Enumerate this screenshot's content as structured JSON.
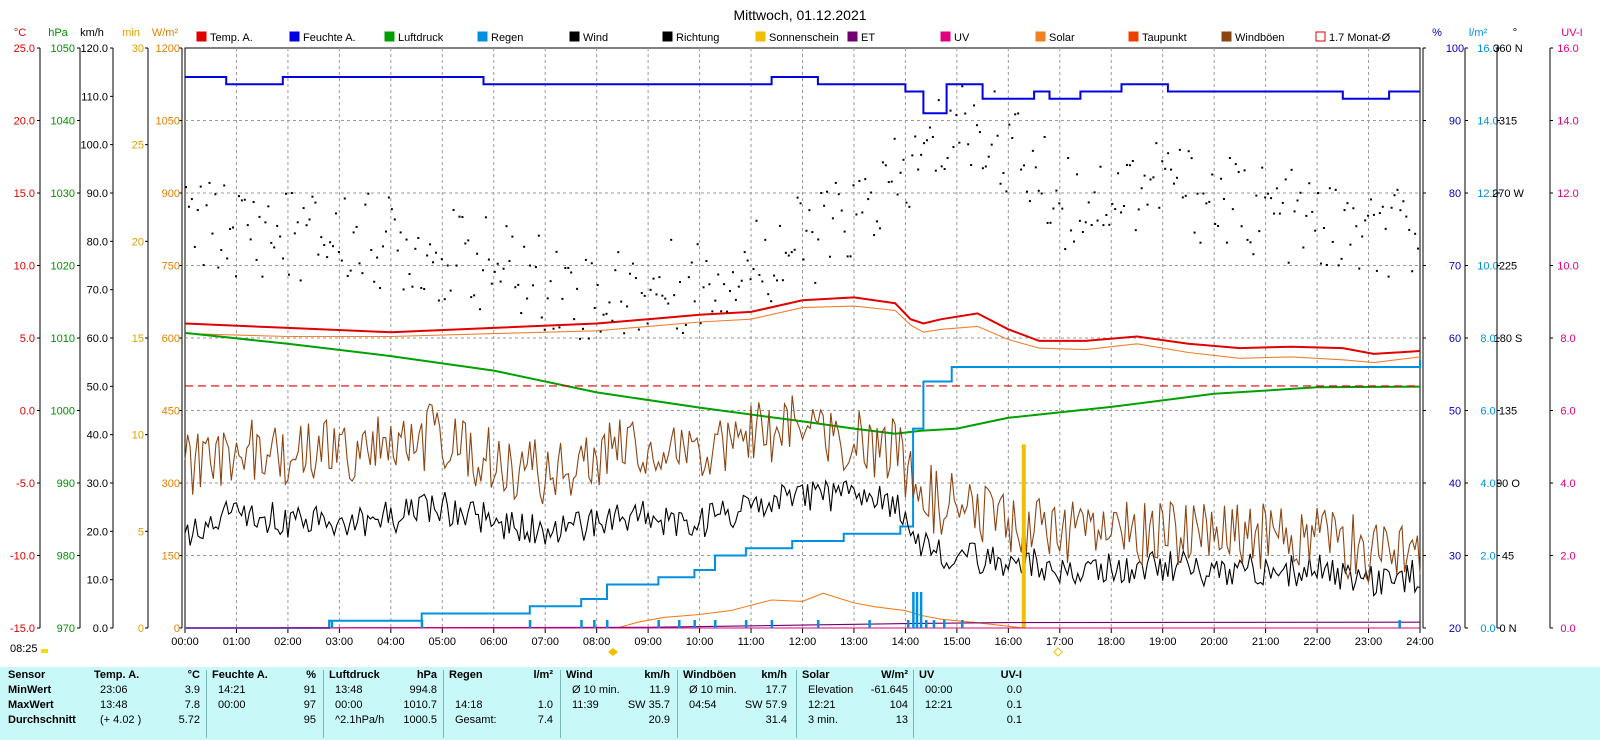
{
  "title": "Mittwoch, 01.12.2021",
  "sunrise_label": "08:25",
  "legend": [
    {
      "label": "Temp. A.",
      "color": "#e00000",
      "marker": "fill"
    },
    {
      "label": "Feuchte A.",
      "color": "#0000e0",
      "marker": "fill"
    },
    {
      "label": "Luftdruck",
      "color": "#00a000",
      "marker": "fill"
    },
    {
      "label": "Regen",
      "color": "#0090e0",
      "marker": "fill"
    },
    {
      "label": "Wind",
      "color": "#000000",
      "marker": "fill"
    },
    {
      "label": "Richtung",
      "color": "#000000",
      "marker": "fill"
    },
    {
      "label": "Sonnenschein",
      "color": "#f0c000",
      "marker": "fill"
    },
    {
      "label": "ET",
      "color": "#700070",
      "marker": "fill"
    },
    {
      "label": "UV",
      "color": "#e00080",
      "marker": "fill"
    },
    {
      "label": "Solar",
      "color": "#f08020",
      "marker": "fill"
    },
    {
      "label": "Taupunkt",
      "color": "#f04000",
      "marker": "fill"
    },
    {
      "label": "Windböen",
      "color": "#8b4513",
      "marker": "fill"
    },
    {
      "label": "1.7 Monat-Ø",
      "color": "#e00000",
      "marker": "outline"
    }
  ],
  "axes_left": [
    {
      "unit": "°C",
      "color": "#e00000",
      "ticks": [
        "25.0",
        "20.0",
        "15.0",
        "10.0",
        "5.0",
        "0.0",
        "-5.0",
        "-10.0",
        "-15.0"
      ]
    },
    {
      "unit": "hPa",
      "color": "#009000",
      "ticks": [
        "1050",
        "1040",
        "1030",
        "1020",
        "1010",
        "1000",
        "990",
        "980",
        "970"
      ]
    },
    {
      "unit": "km/h",
      "color": "#000000",
      "ticks": [
        "120.0",
        "110.0",
        "100.0",
        "90.0",
        "80.0",
        "70.0",
        "60.0",
        "50.0",
        "40.0",
        "30.0",
        "20.0",
        "10.0",
        "0.0"
      ]
    },
    {
      "unit": "min",
      "color": "#e0a000",
      "ticks": [
        "30",
        "25",
        "20",
        "15",
        "10",
        "5",
        "0"
      ]
    },
    {
      "unit": "W/m²",
      "color": "#e08000",
      "ticks": [
        "1200",
        "1050",
        "900",
        "750",
        "600",
        "450",
        "300",
        "150",
        "0"
      ]
    }
  ],
  "axes_right": [
    {
      "unit": "%",
      "color": "#0000c0",
      "ticks": [
        "100",
        "90",
        "80",
        "70",
        "60",
        "50",
        "40",
        "30",
        "20"
      ]
    },
    {
      "unit": "l/m²",
      "color": "#0090e0",
      "ticks": [
        "16.0",
        "14.0",
        "12.0",
        "10.0",
        "8.0",
        "6.0",
        "4.0",
        "2.0",
        "0.0"
      ]
    },
    {
      "unit": "°",
      "color": "#000000",
      "ticks": [
        "360 N",
        "315",
        "270 W",
        "225",
        "180 S",
        "135",
        "90 O",
        "45",
        "0 N"
      ]
    },
    {
      "unit": "UV-I",
      "color": "#e00080",
      "ticks": [
        "16.0",
        "14.0",
        "12.0",
        "10.0",
        "8.0",
        "6.0",
        "4.0",
        "2.0",
        "0.0"
      ]
    }
  ],
  "chart_data": {
    "type": "line",
    "title": "Mittwoch, 01.12.2021",
    "x_tick_labels": [
      "00:00",
      "01:00",
      "02:00",
      "03:00",
      "04:00",
      "05:00",
      "06:00",
      "07:00",
      "08:00",
      "09:00",
      "10:00",
      "11:00",
      "12:00",
      "13:00",
      "14:00",
      "15:00",
      "16:00",
      "17:00",
      "18:00",
      "19:00",
      "20:00",
      "21:00",
      "22:00",
      "23:00",
      "24:00"
    ],
    "x_range_hours": [
      0,
      24
    ],
    "grid": true,
    "legend_position": "top",
    "series": [
      {
        "name": "Temp. A.",
        "axis": "°C",
        "ylim": [
          -15,
          25
        ],
        "color": "#e00000",
        "x": [
          0,
          2,
          4,
          6,
          8,
          9,
          10,
          11,
          12,
          13,
          13.8,
          14.1,
          14.35,
          14.7,
          15.4,
          16,
          16.6,
          17.5,
          18.5,
          19.5,
          20.5,
          21.5,
          22.5,
          23.1,
          24
        ],
        "y": [
          6.0,
          5.7,
          5.4,
          5.7,
          6.0,
          6.3,
          6.6,
          6.8,
          7.6,
          7.8,
          7.4,
          6.3,
          6.0,
          6.3,
          6.7,
          5.6,
          4.8,
          4.8,
          5.1,
          4.6,
          4.3,
          4.4,
          4.3,
          3.9,
          4.1
        ]
      },
      {
        "name": "Taupunkt",
        "axis": "°C",
        "ylim": [
          -15,
          25
        ],
        "color": "#f08030",
        "x": [
          0,
          2,
          4,
          6,
          8,
          9,
          10,
          11,
          12,
          13,
          13.8,
          14.1,
          14.35,
          14.7,
          15.4,
          16,
          16.6,
          17.5,
          18.5,
          19.5,
          20.5,
          21.5,
          22.5,
          23.1,
          24
        ],
        "y": [
          5.3,
          5.1,
          5.1,
          5.3,
          5.5,
          5.8,
          6.1,
          6.3,
          7.1,
          7.2,
          6.9,
          5.9,
          5.4,
          5.6,
          5.8,
          4.9,
          4.3,
          4.2,
          4.6,
          4.0,
          3.6,
          3.7,
          3.5,
          3.3,
          3.7
        ]
      },
      {
        "name": "Feuchte A.",
        "axis": "%",
        "ylim": [
          20,
          100
        ],
        "color": "#0000e0",
        "x": [
          0,
          0.8,
          1.9,
          3.3,
          5.8,
          6.1,
          11.2,
          11.4,
          12.3,
          12.4,
          13.8,
          14.0,
          14.35,
          14.8,
          15.1,
          15.5,
          16.3,
          16.5,
          16.8,
          17.0,
          17.4,
          17.9,
          18.2,
          18.9,
          19.1,
          20.5,
          22.0,
          22.5,
          23.4,
          24
        ],
        "y": [
          96,
          95,
          96,
          96,
          95,
          95,
          95,
          96,
          95,
          95,
          95,
          94,
          91,
          95,
          95,
          93,
          93,
          94,
          93,
          93,
          94,
          94,
          95,
          95,
          94,
          94,
          94,
          93,
          94,
          94
        ]
      },
      {
        "name": "Luftdruck",
        "axis": "hPa",
        "ylim": [
          970,
          1050
        ],
        "color": "#00a000",
        "x": [
          0,
          2,
          4,
          6,
          8,
          10,
          12,
          13,
          13.8,
          14.3,
          15,
          16,
          18,
          20,
          22,
          24
        ],
        "y": [
          1010.7,
          1009.2,
          1007.5,
          1005.5,
          1002.5,
          1000.4,
          998.5,
          997.5,
          996.8,
          997.2,
          997.5,
          999,
          1000.5,
          1002.3,
          1003.2,
          1003.3
        ]
      },
      {
        "name": "Regen",
        "axis": "l/m²",
        "ylim": [
          0,
          16
        ],
        "color": "#0090e0",
        "x": [
          0,
          2.8,
          4.6,
          6.7,
          7.7,
          8.2,
          9.2,
          9.9,
          10.3,
          10.9,
          11.8,
          12.8,
          13.9,
          14.15,
          14.35,
          14.9,
          24
        ],
        "y": [
          0,
          0.2,
          0.4,
          0.6,
          0.8,
          1.2,
          1.4,
          1.6,
          2.0,
          2.2,
          2.4,
          2.6,
          2.8,
          5.5,
          6.8,
          7.2,
          7.4
        ]
      },
      {
        "name": "Wind",
        "axis": "km/h",
        "ylim": [
          0,
          120
        ],
        "color": "#000000",
        "x": [
          0,
          1,
          2,
          3,
          4,
          5,
          6,
          7,
          8,
          9,
          10,
          11,
          12,
          13,
          13.8,
          14.2,
          14.6,
          15.2,
          16,
          17,
          18,
          19,
          20,
          21,
          22,
          23,
          24
        ],
        "y": [
          20,
          24,
          22,
          22,
          23,
          25,
          22,
          20,
          22,
          23,
          22,
          25,
          27,
          27,
          26,
          18,
          16,
          15,
          14,
          12,
          12,
          13,
          12,
          12,
          12,
          10,
          11
        ]
      },
      {
        "name": "Windböen",
        "axis": "km/h",
        "ylim": [
          0,
          120
        ],
        "color": "#8b4513",
        "x": [
          0,
          1,
          2,
          3,
          4,
          5,
          6,
          7,
          8,
          9,
          10,
          11,
          12,
          13,
          13.8,
          14.2,
          14.6,
          15.2,
          16,
          17,
          18,
          19,
          20,
          21,
          22,
          23,
          24
        ],
        "y": [
          33,
          37,
          35,
          37,
          38,
          40,
          34,
          32,
          36,
          38,
          36,
          40,
          42,
          39,
          37,
          30,
          26,
          25,
          22,
          19,
          20,
          20,
          19,
          19,
          19,
          16,
          18
        ]
      },
      {
        "name": "Richtung",
        "axis": "°",
        "ylim": [
          0,
          360
        ],
        "type": "scatter",
        "color": "#000000",
        "x": [
          0,
          2,
          4,
          6,
          8,
          10,
          12,
          13,
          14,
          15,
          16,
          17,
          18,
          19,
          20,
          21,
          22,
          23,
          24
        ],
        "y": [
          250,
          245,
          240,
          225,
          205,
          215,
          240,
          255,
          280,
          315,
          300,
          265,
          270,
          280,
          265,
          260,
          250,
          240,
          245
        ]
      },
      {
        "name": "Solar",
        "axis": "W/m²",
        "ylim": [
          0,
          1200
        ],
        "color": "#f08020",
        "x": [
          0,
          8.4,
          8.8,
          9.3,
          10,
          10.6,
          11.4,
          12,
          12.4,
          13.0,
          13.4,
          13.7,
          14.0,
          14.3,
          14.7,
          15.3,
          15.8,
          16.3,
          24
        ],
        "y": [
          0,
          0,
          12,
          22,
          28,
          36,
          58,
          55,
          72,
          52,
          44,
          40,
          36,
          26,
          18,
          12,
          6,
          0,
          0
        ]
      },
      {
        "name": "Sonnenschein",
        "axis": "min",
        "ylim": [
          0,
          30
        ],
        "type": "bar",
        "color": "#f0c000",
        "x": [
          16.3
        ],
        "y": [
          9.5
        ]
      },
      {
        "name": "ET",
        "axis": "l/m²",
        "ylim": [
          0,
          16
        ],
        "color": "#700070",
        "x": [
          0,
          9,
          12,
          14,
          16,
          24
        ],
        "y": [
          0,
          0.02,
          0.08,
          0.12,
          0.15,
          0.16
        ]
      },
      {
        "name": "UV",
        "axis": "UV-I",
        "ylim": [
          0,
          16
        ],
        "color": "#e00080",
        "x": [
          0,
          24
        ],
        "y": [
          0,
          0
        ]
      },
      {
        "name": "1.7 Monat-Ø",
        "axis": "°C",
        "ylim": [
          -15,
          25
        ],
        "type": "dashed",
        "color": "#e00000",
        "x": [
          0,
          24
        ],
        "y": [
          1.7,
          1.7
        ]
      }
    ]
  },
  "stats": {
    "rows": [
      "Sensor",
      "MinWert",
      "MaxWert",
      "Durchschnitt"
    ],
    "groups": [
      {
        "name": "Temp. A.",
        "unit": "°C",
        "col_a": [
          "23:06",
          "13:48",
          "(+ 4.02 )"
        ],
        "col_b": [
          "3.9",
          "7.8",
          "5.72"
        ]
      },
      {
        "name": "Feuchte A.",
        "unit": "%",
        "col_a": [
          "14:21",
          "00:00",
          ""
        ],
        "col_b": [
          "91",
          "97",
          "95"
        ]
      },
      {
        "name": "Luftdruck",
        "unit": "hPa",
        "col_a": [
          "13:48",
          "00:00",
          "^2.1hPa/h"
        ],
        "col_b": [
          "994.8",
          "1010.7",
          "1000.5"
        ]
      },
      {
        "name": "Regen",
        "unit": "l/m²",
        "col_a": [
          "",
          "14:18",
          "Gesamt:"
        ],
        "col_b": [
          "",
          "1.0",
          "7.4"
        ]
      },
      {
        "name": "Wind",
        "unit": "km/h",
        "col_a": [
          "Ø 10 min.",
          "11:39",
          ""
        ],
        "col_b": [
          "11.9",
          "SW 35.7",
          "20.9"
        ]
      },
      {
        "name": "Windböen",
        "unit": "km/h",
        "col_a": [
          "Ø 10 min.",
          "04:54",
          ""
        ],
        "col_b": [
          "17.7",
          "SW 57.9",
          "31.4"
        ]
      },
      {
        "name": "Solar",
        "unit": "W/m²",
        "col_a": [
          "Elevation",
          "12:21",
          "3 min."
        ],
        "col_b": [
          "-61.645",
          "104",
          "13"
        ]
      },
      {
        "name": "UV",
        "unit": "UV-I",
        "col_a": [
          "00:00",
          "12:21",
          ""
        ],
        "col_b": [
          "0.0",
          "0.1",
          "0.1"
        ]
      }
    ]
  }
}
